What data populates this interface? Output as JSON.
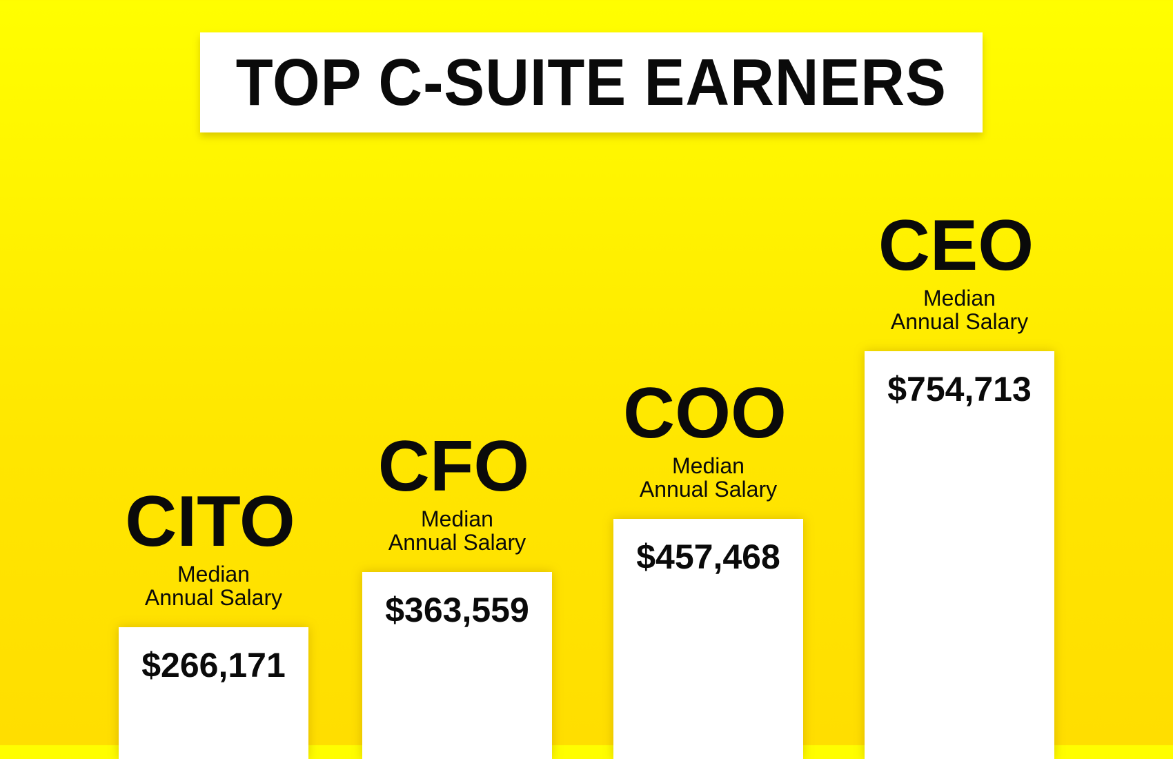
{
  "chart_data": {
    "type": "bar",
    "title": "TOP C-SUITE EARNERS",
    "categories": [
      "CITO",
      "CFO",
      "COO",
      "CEO"
    ],
    "values": [
      266171,
      363559,
      457468,
      754713
    ],
    "value_labels": [
      "$266,171",
      "$363,559",
      "$457,468",
      "$754,713"
    ],
    "bar_sublabel_line1": "Median",
    "bar_sublabel_line2": "Annual Salary",
    "xlabel": "",
    "ylabel": "",
    "grid": false,
    "legend": "none"
  },
  "colors": {
    "background_top": "#fffe00",
    "background_bottom": "#ffde00",
    "bar": "#ffffff",
    "text": "#0a0a0a"
  }
}
